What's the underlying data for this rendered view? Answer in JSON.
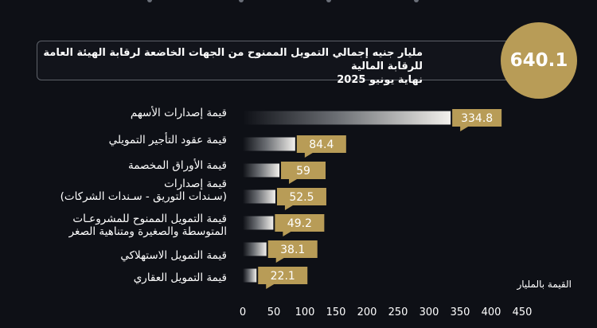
{
  "header": {
    "value": "640.1",
    "title_line1": "مليار جنيه إجمالي التمويل الممنوح من الجهات الخاضعة لرقابة الهيئة العامة للرقابة المالية",
    "title_line2": "نهاية يونيو 2025"
  },
  "chart_data": {
    "type": "bar",
    "orientation": "horizontal",
    "categories": [
      "قيمة إصدارات الأسهم",
      "قيمة عقود التأجير التمويلي",
      "قيمة الأوراق المخصمة",
      "قيمة إصدارات (سـندات التوريق - سـندات الشركات)",
      "قيمة التمويل الممنوح للمشروعـات المتوسطة والصغيرة ومتناهية الصغر",
      "قيمة التمويل الاستهلاكي",
      "قيمة التمويل العقاري"
    ],
    "category_lines": [
      [
        "قيمة إصدارات الأسهم"
      ],
      [
        "قيمة عقود التأجير التمويلي"
      ],
      [
        "قيمة الأوراق المخصمة"
      ],
      [
        "قيمة إصدارات",
        "(سـندات التوريق - سـندات الشركات)"
      ],
      [
        "قيمة التمويل الممنوح للمشروعـات",
        "المتوسطة والصغيرة ومتناهية الصغر"
      ],
      [
        "قيمة التمويل الاستهلاكي"
      ],
      [
        "قيمة التمويل العقاري"
      ]
    ],
    "values": [
      334.8,
      84.4,
      59,
      52.5,
      49.2,
      38.1,
      22.1
    ],
    "value_labels": [
      "334.8",
      "84.4",
      "59",
      "52.5",
      "49.2",
      "38.1",
      "22.1"
    ],
    "xlabel": "القيمة بالمليار",
    "xlim": [
      0,
      450
    ],
    "xticks": [
      "0",
      "50",
      "100",
      "150",
      "200",
      "250",
      "300",
      "350",
      "400",
      "450"
    ],
    "grid": false,
    "colors": {
      "bar": "#f2f0ec",
      "label_box": "#b89c57",
      "label_text": "#ffffff",
      "background": "#0e1016"
    }
  }
}
